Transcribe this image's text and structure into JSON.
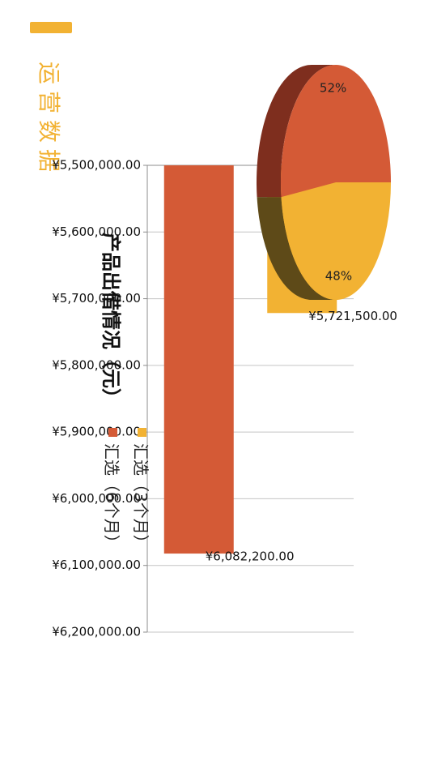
{
  "page": {
    "title": "运营数据",
    "accent_color": "#F2B233"
  },
  "chart_data": [
    {
      "type": "bar",
      "title": "产品出借情况（元）",
      "orientation": "horizontal",
      "categories": [
        "汇选（3个月）",
        "汇选（6个月）"
      ],
      "values": [
        5721500,
        6082200
      ],
      "data_labels": [
        "¥5,721,500.00",
        "¥6,082,200.00"
      ],
      "colors": [
        "#F2B233",
        "#D45A36"
      ],
      "xlim": [
        5500000,
        6200000
      ],
      "tick_labels": [
        "¥5,500,000.00",
        "¥5,600,000.00",
        "¥5,700,000.00",
        "¥5,800,000.00",
        "¥5,900,000.00",
        "¥6,000,000.00",
        "¥6,100,000.00",
        "¥6,200,000.00"
      ],
      "grid": true,
      "xlabel": "",
      "ylabel": ""
    },
    {
      "type": "pie",
      "style": "3d",
      "legend_position": "top",
      "slices": [
        {
          "label": "汇选（3个月）",
          "value": 48,
          "display": "48%",
          "color": "#F2B233",
          "side_color": "#5E4A18"
        },
        {
          "label": "汇选（6个月）",
          "value": 52,
          "display": "52%",
          "color": "#D45A36",
          "side_color": "#7E2E1E"
        }
      ]
    }
  ]
}
